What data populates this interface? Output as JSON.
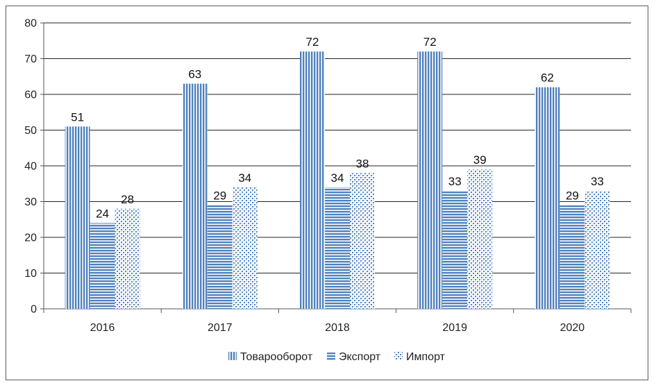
{
  "chart_data": {
    "type": "bar",
    "categories": [
      "2016",
      "2017",
      "2018",
      "2019",
      "2020"
    ],
    "series": [
      {
        "name": "Товарооборот",
        "values": [
          51,
          63,
          72,
          72,
          62
        ],
        "pattern": "vertical-stripes"
      },
      {
        "name": "Экспорт",
        "values": [
          24,
          29,
          34,
          33,
          29
        ],
        "pattern": "horizontal-stripes"
      },
      {
        "name": "Импорт",
        "values": [
          28,
          34,
          38,
          39,
          33
        ],
        "pattern": "dots"
      }
    ],
    "title": "",
    "xlabel": "",
    "ylabel": "",
    "ylim": [
      0,
      80
    ],
    "yticks": [
      0,
      10,
      20,
      30,
      40,
      50,
      60,
      70,
      80
    ],
    "grid": true,
    "legend": "bottom",
    "data_labels": true,
    "colors": {
      "bar": "#4f81bd",
      "grid": "#222222",
      "axis": "#555555"
    }
  }
}
